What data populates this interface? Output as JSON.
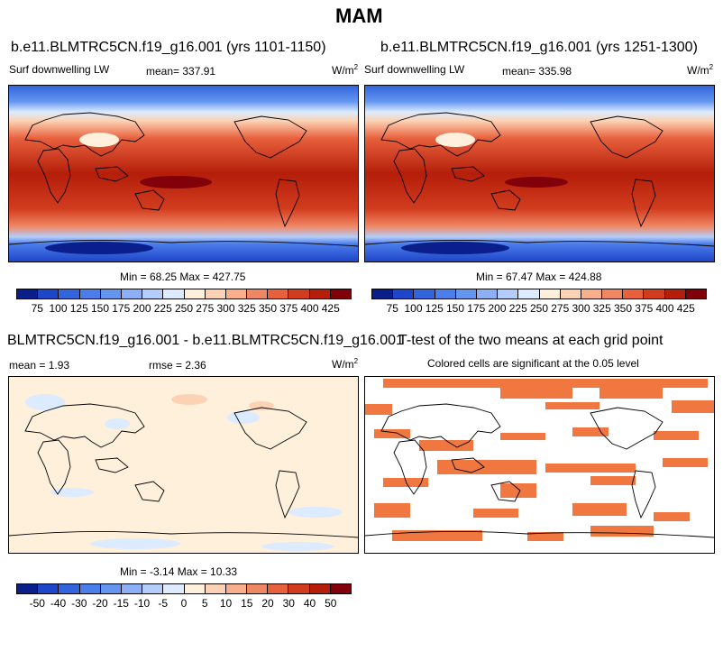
{
  "title": "MAM",
  "panels": {
    "p1": {
      "title": "b.e11.BLMTRC5CN.f19_g16.001 (yrs 1101-1150)",
      "variable": "Surf downwelling LW",
      "mean_label": "mean=",
      "mean": "337.91",
      "units": "W/m",
      "units_sup": "2",
      "minmax": "Min = 68.25 Max = 427.75"
    },
    "p2": {
      "title": "b.e11.BLMTRC5CN.f19_g16.001 (yrs 1251-1300)",
      "variable": "Surf downwelling LW",
      "mean_label": "mean=",
      "mean": "335.98",
      "units": "W/m",
      "units_sup": "2",
      "minmax": "Min = 67.47 Max = 424.88"
    },
    "p3": {
      "title": "BLMTRC5CN.f19_g16.001 - b.e11.BLMTRC5CN.f19_g16.001",
      "mean_label": "mean =",
      "mean": "1.93",
      "rmse_label": "rmse =",
      "rmse": "2.36",
      "units": "W/m",
      "units_sup": "2",
      "minmax": "Min = -3.14 Max = 10.33"
    },
    "p4": {
      "title": "T-test of the two means at each grid point",
      "subtitle": "Colored cells are significant at the 0.05 level"
    }
  },
  "colorbar_abs": {
    "labels": [
      "75",
      "100",
      "125",
      "150",
      "175",
      "200",
      "225",
      "250",
      "275",
      "300",
      "325",
      "350",
      "375",
      "400",
      "425"
    ],
    "colors": [
      "#0a1e8c",
      "#1e46c8",
      "#3264dc",
      "#4b7deb",
      "#6496f0",
      "#8caff5",
      "#b4cdfa",
      "#dcebff",
      "#fff0dc",
      "#fcd2b4",
      "#f8af8c",
      "#f08764",
      "#e8603c",
      "#d23c1e",
      "#b41e0a",
      "#82000a"
    ]
  },
  "colorbar_diff": {
    "labels": [
      "-50",
      "-40",
      "-30",
      "-20",
      "-15",
      "-10",
      "-5",
      "0",
      "5",
      "10",
      "15",
      "20",
      "30",
      "40",
      "50"
    ],
    "colors": [
      "#0a1e8c",
      "#1e46c8",
      "#3264dc",
      "#4b7deb",
      "#6496f0",
      "#8caff5",
      "#b4cdfa",
      "#dcebff",
      "#fff0dc",
      "#fcd2b4",
      "#f8af8c",
      "#f08764",
      "#e8603c",
      "#d23c1e",
      "#b41e0a",
      "#82000a"
    ]
  },
  "ttest_color": "#f07840"
}
